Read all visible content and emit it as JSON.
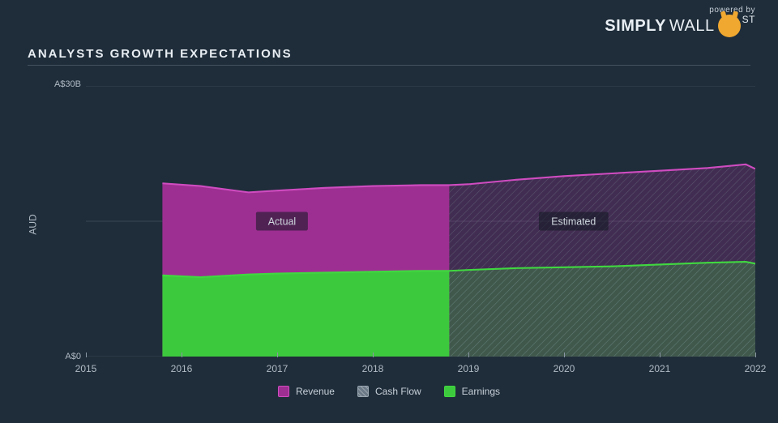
{
  "branding": {
    "powered_by": "powered by",
    "brand_bold": "SIMPLY",
    "brand_light": "WALL",
    "brand_st": "ST"
  },
  "chart": {
    "type": "area",
    "title": "ANALYSTS GROWTH EXPECTATIONS",
    "background_color": "#1f2d3a",
    "grid_color": "#3a4855",
    "axis_label_color": "#b0bbc5",
    "title_color": "#e8eef3",
    "title_fontsize": 15,
    "label_fontsize": 12,
    "yaxis": {
      "label": "AUD",
      "min": 0,
      "max": 30,
      "unit_prefix": "A$",
      "unit_suffix": "B",
      "ticks": [
        0,
        30
      ],
      "tick_labels": [
        "A$0",
        "A$30B"
      ],
      "grid_at": [
        0,
        15,
        30
      ]
    },
    "xaxis": {
      "min": 2015,
      "max": 2022,
      "ticks": [
        2015,
        2016,
        2017,
        2018,
        2019,
        2020,
        2021,
        2022
      ]
    },
    "split_year": 2018.8,
    "annotations": {
      "actual": "Actual",
      "estimated": "Estimated",
      "box_fill": "#101821",
      "box_opacity": 0.55,
      "text_color": "#d0d8df",
      "actual_pos_year": 2017.05,
      "estimated_pos_year": 2020.1,
      "pos_value": 15.0
    },
    "series": {
      "revenue": {
        "label": "Revenue",
        "color": "#9e2f92",
        "line_color": "#cf4cc0",
        "est_fill_opacity": 0.28,
        "points": [
          [
            2015.8,
            19.2
          ],
          [
            2016.2,
            18.9
          ],
          [
            2016.7,
            18.2
          ],
          [
            2017.0,
            18.4
          ],
          [
            2017.5,
            18.7
          ],
          [
            2018.0,
            18.9
          ],
          [
            2018.5,
            19.0
          ],
          [
            2018.8,
            19.0
          ],
          [
            2019.0,
            19.1
          ],
          [
            2019.5,
            19.6
          ],
          [
            2020.0,
            20.0
          ],
          [
            2020.5,
            20.3
          ],
          [
            2021.0,
            20.6
          ],
          [
            2021.5,
            20.9
          ],
          [
            2021.9,
            21.3
          ],
          [
            2022.0,
            20.8
          ]
        ]
      },
      "earnings": {
        "label": "Earnings",
        "color": "#3dc93d",
        "line_color": "#40d840",
        "est_fill_opacity": 0.28,
        "points": [
          [
            2015.8,
            9.0
          ],
          [
            2016.2,
            8.8
          ],
          [
            2016.7,
            9.1
          ],
          [
            2017.0,
            9.2
          ],
          [
            2017.5,
            9.3
          ],
          [
            2018.0,
            9.4
          ],
          [
            2018.5,
            9.5
          ],
          [
            2018.8,
            9.5
          ],
          [
            2019.0,
            9.6
          ],
          [
            2019.5,
            9.8
          ],
          [
            2020.0,
            9.9
          ],
          [
            2020.5,
            10.0
          ],
          [
            2021.0,
            10.2
          ],
          [
            2021.5,
            10.4
          ],
          [
            2021.9,
            10.5
          ],
          [
            2022.0,
            10.3
          ]
        ]
      }
    },
    "hatch": {
      "angle": 45,
      "spacing": 6,
      "stroke": "#6c7a87",
      "stroke_width": 1.0,
      "opacity": 0.55
    },
    "legend": {
      "items": [
        {
          "key": "revenue",
          "label": "Revenue",
          "swatch": "sw-revenue"
        },
        {
          "key": "cashflow",
          "label": "Cash Flow",
          "swatch": "sw-cash"
        },
        {
          "key": "earnings",
          "label": "Earnings",
          "swatch": "sw-earn"
        }
      ]
    }
  }
}
